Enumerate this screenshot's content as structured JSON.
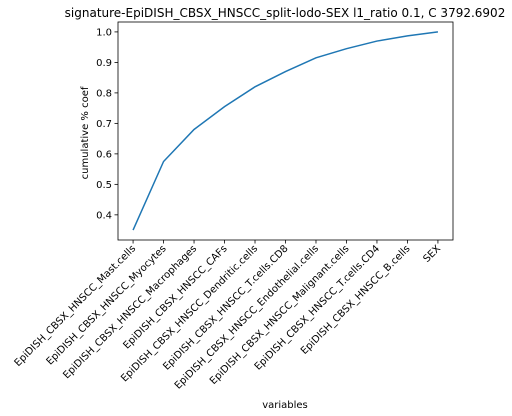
{
  "chart_data": {
    "type": "line",
    "title": "signature-EpiDISH_CBSX_HNSCC_split-lodo-SEX l1_ratio 0.1, C 3792.6902",
    "xlabel": "variables",
    "ylabel": "cumulative % coef",
    "categories": [
      "EpiDISH_CBSX_HNSCC_Mast.cells",
      "EpiDISH_CBSX_HNSCC_Myocytes",
      "EpiDISH_CBSX_HNSCC_Macrophages",
      "EpiDISH_CBSX_HNSCC_CAFs",
      "EpiDISH_CBSX_HNSCC_Dendritic.cells",
      "EpiDISH_CBSX_HNSCC_T.cells.CD8",
      "EpiDISH_CBSX_HNSCC_Endothelial.cells",
      "EpiDISH_CBSX_HNSCC_Malignant.cells",
      "EpiDISH_CBSX_HNSCC_T.cells.CD4",
      "EpiDISH_CBSX_HNSCC_B.cells",
      "SEX"
    ],
    "series": [
      {
        "values": [
          0.35,
          0.575,
          0.68,
          0.755,
          0.82,
          0.87,
          0.915,
          0.945,
          0.97,
          0.987,
          1.0
        ]
      }
    ],
    "yticks": [
      0.4,
      0.5,
      0.6,
      0.7,
      0.8,
      0.9,
      1.0
    ],
    "ylim": [
      0.3175,
      1.0325
    ],
    "grid": false,
    "line_color": "#1f77b4"
  }
}
